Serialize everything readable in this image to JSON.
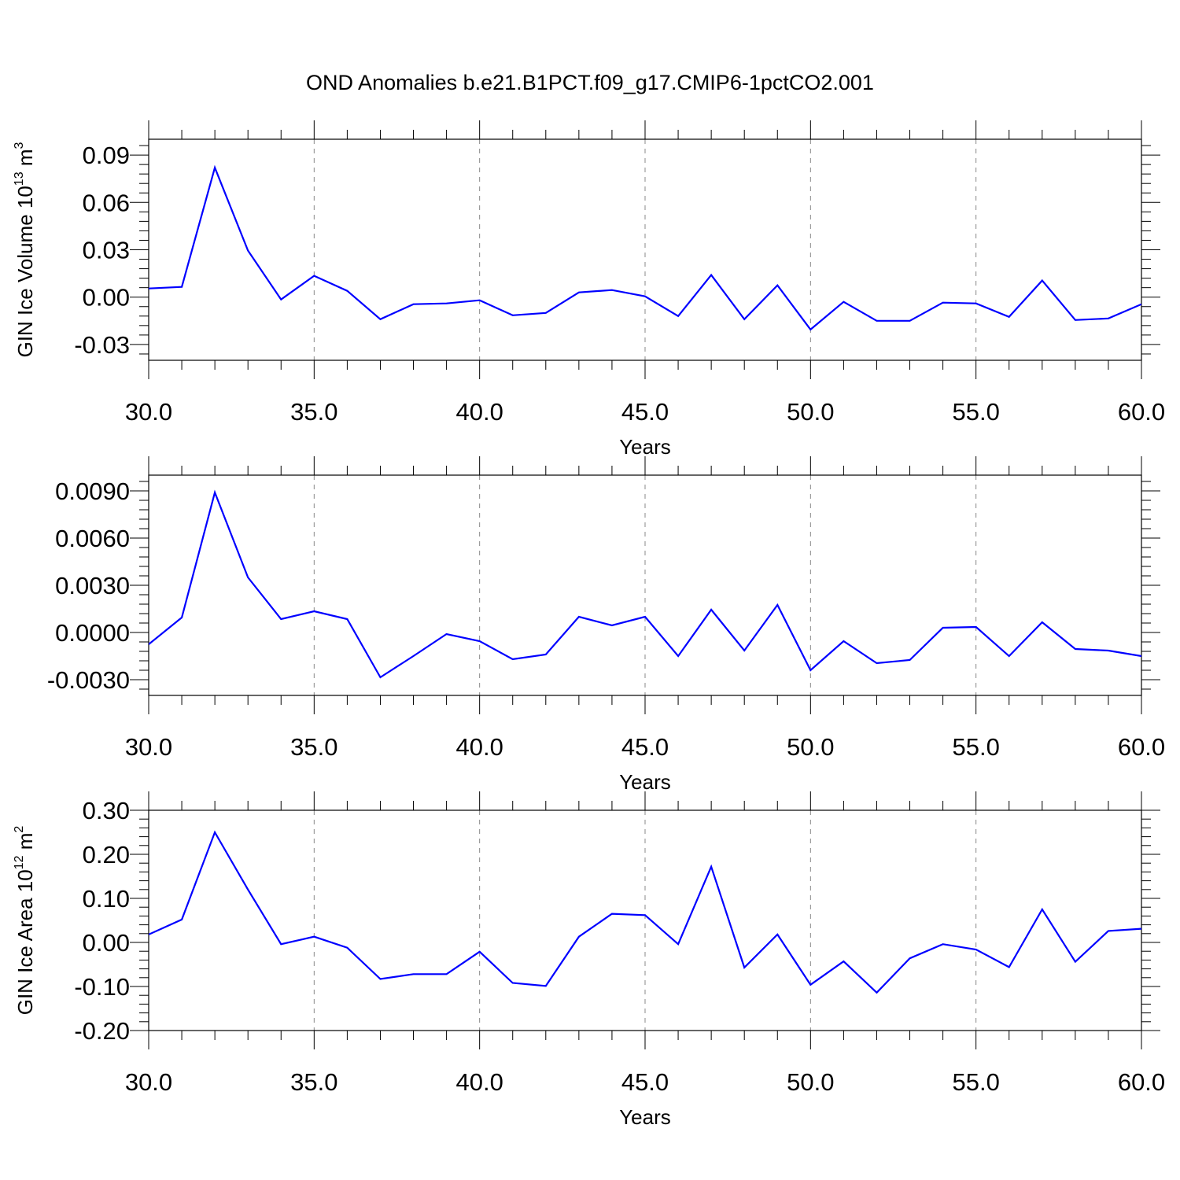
{
  "title": "OND Anomalies b.e21.B1PCT.f09_g17.CMIP6-1pctCO2.001",
  "colors": {
    "line": "#0000ff",
    "axis": "#000000",
    "grid": "#888888"
  },
  "chart_data": [
    {
      "type": "line",
      "title": "OND Anomalies b.e21.B1PCT.f09_g17.CMIP6-1pctCO2.001",
      "xlabel": "Years",
      "ylabel": {
        "base": "GIN Ice Volume 10",
        "exp": "13",
        "unit": " m",
        "unit_exp": "3"
      },
      "xlim": [
        30,
        60
      ],
      "ylim": [
        -0.04,
        0.1
      ],
      "xticks": [
        "30.0",
        "35.0",
        "40.0",
        "45.0",
        "50.0",
        "55.0",
        "60.0"
      ],
      "yticks": [
        {
          "v": 0.09,
          "label": "0.09"
        },
        {
          "v": 0.06,
          "label": "0.06"
        },
        {
          "v": 0.03,
          "label": "0.03"
        },
        {
          "v": 0.0,
          "label": "0.00"
        },
        {
          "v": -0.03,
          "label": "-0.03"
        }
      ],
      "grid": "vertical dashed at major x ticks",
      "x": [
        30,
        31,
        32,
        33,
        34,
        35,
        36,
        37,
        38,
        39,
        40,
        41,
        42,
        43,
        44,
        45,
        46,
        47,
        48,
        49,
        50,
        51,
        52,
        53,
        54,
        55,
        56,
        57,
        58,
        59,
        60
      ],
      "values": [
        0.0055,
        0.0065,
        0.082,
        0.0295,
        -0.0015,
        0.0135,
        0.004,
        -0.014,
        -0.0045,
        -0.004,
        -0.002,
        -0.0115,
        -0.01,
        0.003,
        0.0045,
        0.0005,
        -0.012,
        0.014,
        -0.014,
        0.0075,
        -0.0205,
        -0.003,
        -0.015,
        -0.015,
        -0.0035,
        -0.004,
        -0.0125,
        0.0105,
        -0.0145,
        -0.0135,
        -0.0045
      ]
    },
    {
      "type": "line",
      "xlabel": "Years",
      "ylabel": {
        "base": "",
        "exp": "",
        "unit": "",
        "unit_exp": ""
      },
      "xlim": [
        30,
        60
      ],
      "ylim": [
        -0.004,
        0.01
      ],
      "xticks": [
        "30.0",
        "35.0",
        "40.0",
        "45.0",
        "50.0",
        "55.0",
        "60.0"
      ],
      "yticks": [
        {
          "v": 0.009,
          "label": "0.0090"
        },
        {
          "v": 0.006,
          "label": "0.0060"
        },
        {
          "v": 0.003,
          "label": "0.0030"
        },
        {
          "v": 0.0,
          "label": "0.0000"
        },
        {
          "v": -0.003,
          "label": "-0.0030"
        }
      ],
      "grid": "vertical dashed at major x ticks",
      "x": [
        30,
        31,
        32,
        33,
        34,
        35,
        36,
        37,
        38,
        39,
        40,
        41,
        42,
        43,
        44,
        45,
        46,
        47,
        48,
        49,
        50,
        51,
        52,
        53,
        54,
        55,
        56,
        57,
        58,
        59,
        60
      ],
      "values": [
        -0.00075,
        0.00095,
        0.0089,
        0.0035,
        0.00085,
        0.00135,
        0.00085,
        -0.00285,
        -0.0015,
        -0.0001,
        -0.00055,
        -0.0017,
        -0.0014,
        0.001,
        0.00045,
        0.001,
        -0.0015,
        0.00145,
        -0.00115,
        0.00175,
        -0.0024,
        -0.00055,
        -0.00195,
        -0.00175,
        0.0003,
        0.00035,
        -0.0015,
        0.00065,
        -0.00105,
        -0.00115,
        -0.0015
      ]
    },
    {
      "type": "line",
      "xlabel": "Years",
      "ylabel": {
        "base": "GIN Ice Area 10",
        "exp": "12",
        "unit": " m",
        "unit_exp": "2"
      },
      "xlim": [
        30,
        60
      ],
      "ylim": [
        -0.2,
        0.3
      ],
      "xticks": [
        "30.0",
        "35.0",
        "40.0",
        "45.0",
        "50.0",
        "55.0",
        "60.0"
      ],
      "yticks": [
        {
          "v": 0.3,
          "label": "0.30"
        },
        {
          "v": 0.2,
          "label": "0.20"
        },
        {
          "v": 0.1,
          "label": "0.10"
        },
        {
          "v": 0.0,
          "label": "0.00"
        },
        {
          "v": -0.1,
          "label": "-0.10"
        },
        {
          "v": -0.2,
          "label": "-0.20"
        }
      ],
      "grid": "vertical dashed at major x ticks",
      "x": [
        30,
        31,
        32,
        33,
        34,
        35,
        36,
        37,
        38,
        39,
        40,
        41,
        42,
        43,
        44,
        45,
        46,
        47,
        48,
        49,
        50,
        51,
        52,
        53,
        54,
        55,
        56,
        57,
        58,
        59,
        60
      ],
      "values": [
        0.018,
        0.052,
        0.25,
        0.12,
        -0.004,
        0.013,
        -0.012,
        -0.083,
        -0.072,
        -0.072,
        -0.021,
        -0.092,
        -0.099,
        0.013,
        0.065,
        0.062,
        -0.004,
        0.172,
        -0.057,
        0.018,
        -0.096,
        -0.043,
        -0.114,
        -0.036,
        -0.004,
        -0.016,
        -0.056,
        0.075,
        -0.044,
        0.026,
        0.031
      ]
    }
  ]
}
